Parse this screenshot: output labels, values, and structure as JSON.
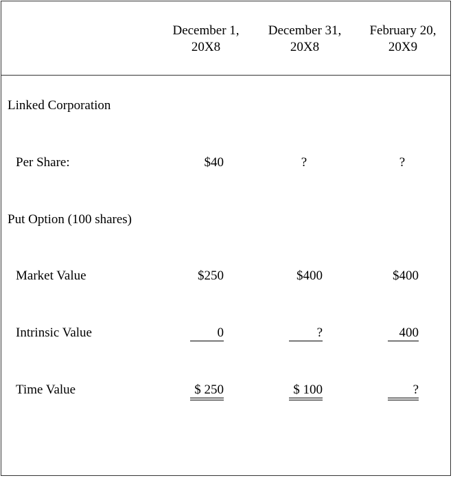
{
  "columns": [
    "December 1, 20X8",
    "December 31, 20X8",
    "February 20, 20X9"
  ],
  "columns_lines": [
    [
      "December 1,",
      "20X8"
    ],
    [
      "December 31,",
      "20X8"
    ],
    [
      "February 20,",
      "20X9"
    ]
  ],
  "section1": "Linked Corporation",
  "per_share": {
    "label": "Per Share:",
    "values": [
      "$40",
      "?",
      "?"
    ]
  },
  "section2": "Put Option (100 shares)",
  "market_value": {
    "label": "Market Value",
    "values": [
      "$250",
      "$400",
      "$400"
    ]
  },
  "intrinsic_value": {
    "label": "Intrinsic Value",
    "values": [
      "0",
      "?",
      "400"
    ]
  },
  "time_value": {
    "label": "Time Value",
    "values": [
      "$ 250",
      "$ 100",
      "?"
    ]
  }
}
